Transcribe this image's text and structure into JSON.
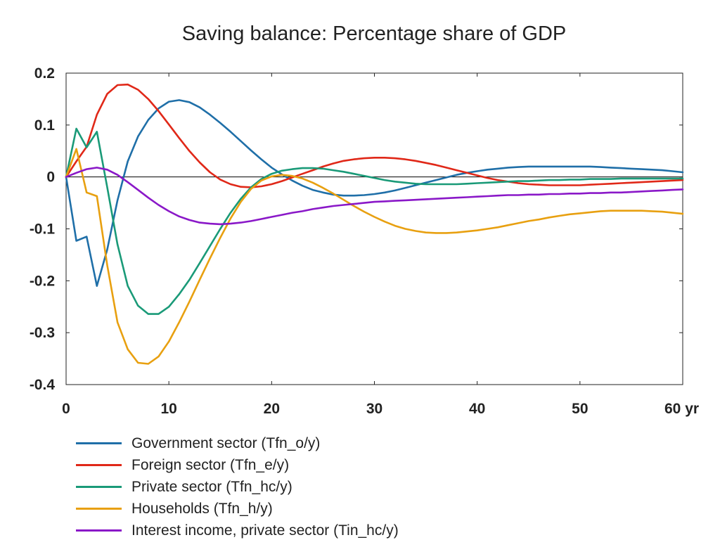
{
  "chart_data": {
    "type": "line",
    "title": "Saving balance: Percentage share of GDP",
    "xlabel": "",
    "ylabel": "",
    "x_unit_label": "yr",
    "xlim": [
      0,
      60
    ],
    "ylim": [
      -0.4,
      0.2
    ],
    "x_ticks": [
      0,
      10,
      20,
      30,
      40,
      50,
      60
    ],
    "x_tick_labels": [
      "0",
      "10",
      "20",
      "30",
      "40",
      "50",
      "60 yr"
    ],
    "y_ticks": [
      0.2,
      0.1,
      0,
      -0.1,
      -0.2,
      -0.3,
      -0.4
    ],
    "y_tick_labels": [
      "0.2",
      "0.1",
      "0",
      "-0.1",
      "-0.2",
      "-0.3",
      "-0.4"
    ],
    "zero_line": true,
    "grid": false,
    "legend_position": "bottom",
    "series": [
      {
        "name": "Government sector (Tfn_o/y)",
        "color": "#1f6fa8",
        "x": [
          0,
          1,
          2,
          3,
          4,
          5,
          6,
          7,
          8,
          9,
          10,
          11,
          12,
          13,
          14,
          15,
          16,
          17,
          18,
          19,
          20,
          21,
          22,
          23,
          24,
          25,
          26,
          27,
          28,
          29,
          30,
          31,
          32,
          33,
          34,
          35,
          36,
          37,
          38,
          39,
          40,
          41,
          42,
          43,
          44,
          45,
          46,
          47,
          48,
          49,
          50,
          51,
          52,
          53,
          54,
          55,
          56,
          57,
          58,
          59,
          60
        ],
        "y": [
          0,
          -0.123,
          -0.115,
          -0.21,
          -0.14,
          -0.045,
          0.03,
          0.078,
          0.11,
          0.132,
          0.145,
          0.148,
          0.144,
          0.134,
          0.12,
          0.104,
          0.087,
          0.069,
          0.051,
          0.034,
          0.018,
          0.005,
          -0.007,
          -0.017,
          -0.025,
          -0.03,
          -0.034,
          -0.036,
          -0.036,
          -0.035,
          -0.033,
          -0.03,
          -0.026,
          -0.021,
          -0.016,
          -0.011,
          -0.006,
          -0.001,
          0.004,
          0.008,
          0.011,
          0.014,
          0.016,
          0.018,
          0.019,
          0.02,
          0.02,
          0.02,
          0.02,
          0.02,
          0.02,
          0.02,
          0.019,
          0.018,
          0.017,
          0.016,
          0.015,
          0.014,
          0.013,
          0.011,
          0.009
        ]
      },
      {
        "name": "Foreign sector (Tfn_e/y)",
        "color": "#e02818",
        "x": [
          0,
          1,
          2,
          3,
          4,
          5,
          6,
          7,
          8,
          9,
          10,
          11,
          12,
          13,
          14,
          15,
          16,
          17,
          18,
          19,
          20,
          21,
          22,
          23,
          24,
          25,
          26,
          27,
          28,
          29,
          30,
          31,
          32,
          33,
          34,
          35,
          36,
          37,
          38,
          39,
          40,
          41,
          42,
          43,
          44,
          45,
          46,
          47,
          48,
          49,
          50,
          51,
          52,
          53,
          54,
          55,
          56,
          57,
          58,
          59,
          60
        ],
        "y": [
          0,
          0.03,
          0.058,
          0.12,
          0.16,
          0.177,
          0.178,
          0.168,
          0.15,
          0.127,
          0.101,
          0.075,
          0.05,
          0.028,
          0.009,
          -0.005,
          -0.014,
          -0.019,
          -0.02,
          -0.018,
          -0.014,
          -0.008,
          -0.001,
          0.006,
          0.013,
          0.02,
          0.026,
          0.031,
          0.034,
          0.036,
          0.037,
          0.037,
          0.036,
          0.034,
          0.031,
          0.027,
          0.023,
          0.018,
          0.013,
          0.008,
          0.003,
          -0.002,
          -0.006,
          -0.009,
          -0.012,
          -0.014,
          -0.015,
          -0.016,
          -0.016,
          -0.016,
          -0.016,
          -0.015,
          -0.014,
          -0.013,
          -0.012,
          -0.011,
          -0.01,
          -0.009,
          -0.008,
          -0.007,
          -0.006
        ]
      },
      {
        "name": "Private sector (Tfn_hc/y)",
        "color": "#1a9a78",
        "x": [
          0,
          1,
          2,
          3,
          4,
          5,
          6,
          7,
          8,
          9,
          10,
          11,
          12,
          13,
          14,
          15,
          16,
          17,
          18,
          19,
          20,
          21,
          22,
          23,
          24,
          25,
          26,
          27,
          28,
          29,
          30,
          31,
          32,
          33,
          34,
          35,
          36,
          37,
          38,
          39,
          40,
          41,
          42,
          43,
          44,
          45,
          46,
          47,
          48,
          49,
          50,
          51,
          52,
          53,
          54,
          55,
          56,
          57,
          58,
          59,
          60
        ],
        "y": [
          0,
          0.093,
          0.057,
          0.087,
          -0.02,
          -0.13,
          -0.21,
          -0.248,
          -0.264,
          -0.264,
          -0.25,
          -0.226,
          -0.198,
          -0.166,
          -0.133,
          -0.1,
          -0.069,
          -0.042,
          -0.02,
          -0.004,
          0.006,
          0.012,
          0.015,
          0.017,
          0.017,
          0.016,
          0.013,
          0.01,
          0.006,
          0.002,
          -0.002,
          -0.006,
          -0.009,
          -0.011,
          -0.013,
          -0.014,
          -0.014,
          -0.014,
          -0.014,
          -0.013,
          -0.012,
          -0.011,
          -0.01,
          -0.009,
          -0.008,
          -0.008,
          -0.007,
          -0.006,
          -0.006,
          -0.005,
          -0.005,
          -0.004,
          -0.004,
          -0.004,
          -0.003,
          -0.003,
          -0.003,
          -0.003,
          -0.003,
          -0.003,
          -0.003
        ]
      },
      {
        "name": "Households (Tfn_h/y)",
        "color": "#e8a010",
        "x": [
          0,
          1,
          2,
          3,
          4,
          5,
          6,
          7,
          8,
          9,
          10,
          11,
          12,
          13,
          14,
          15,
          16,
          17,
          18,
          19,
          20,
          21,
          22,
          23,
          24,
          25,
          26,
          27,
          28,
          29,
          30,
          31,
          32,
          33,
          34,
          35,
          36,
          37,
          38,
          39,
          40,
          41,
          42,
          43,
          44,
          45,
          46,
          47,
          48,
          49,
          50,
          51,
          52,
          53,
          54,
          55,
          56,
          57,
          58,
          59,
          60
        ],
        "y": [
          0,
          0.054,
          -0.03,
          -0.037,
          -0.17,
          -0.28,
          -0.332,
          -0.358,
          -0.36,
          -0.346,
          -0.317,
          -0.28,
          -0.24,
          -0.198,
          -0.157,
          -0.117,
          -0.08,
          -0.048,
          -0.023,
          -0.007,
          0.001,
          0.004,
          0.002,
          -0.003,
          -0.011,
          -0.021,
          -0.032,
          -0.044,
          -0.056,
          -0.067,
          -0.077,
          -0.086,
          -0.094,
          -0.1,
          -0.104,
          -0.107,
          -0.108,
          -0.108,
          -0.107,
          -0.105,
          -0.103,
          -0.1,
          -0.097,
          -0.093,
          -0.089,
          -0.085,
          -0.082,
          -0.078,
          -0.075,
          -0.072,
          -0.07,
          -0.068,
          -0.066,
          -0.065,
          -0.065,
          -0.065,
          -0.065,
          -0.066,
          -0.067,
          -0.069,
          -0.071
        ]
      },
      {
        "name": "Interest income, private sector (Tin_hc/y)",
        "color": "#8a18c8",
        "x": [
          0,
          1,
          2,
          3,
          4,
          5,
          6,
          7,
          8,
          9,
          10,
          11,
          12,
          13,
          14,
          15,
          16,
          17,
          18,
          19,
          20,
          21,
          22,
          23,
          24,
          25,
          26,
          27,
          28,
          29,
          30,
          31,
          32,
          33,
          34,
          35,
          36,
          37,
          38,
          39,
          40,
          41,
          42,
          43,
          44,
          45,
          46,
          47,
          48,
          49,
          50,
          51,
          52,
          53,
          54,
          55,
          56,
          57,
          58,
          59,
          60
        ],
        "y": [
          0,
          0.008,
          0.015,
          0.018,
          0.014,
          0.004,
          -0.01,
          -0.025,
          -0.04,
          -0.054,
          -0.066,
          -0.076,
          -0.083,
          -0.088,
          -0.09,
          -0.091,
          -0.09,
          -0.088,
          -0.085,
          -0.081,
          -0.077,
          -0.073,
          -0.069,
          -0.066,
          -0.062,
          -0.059,
          -0.056,
          -0.054,
          -0.052,
          -0.05,
          -0.048,
          -0.047,
          -0.046,
          -0.045,
          -0.044,
          -0.043,
          -0.042,
          -0.041,
          -0.04,
          -0.039,
          -0.038,
          -0.037,
          -0.036,
          -0.035,
          -0.035,
          -0.034,
          -0.034,
          -0.033,
          -0.033,
          -0.032,
          -0.032,
          -0.031,
          -0.031,
          -0.03,
          -0.03,
          -0.029,
          -0.028,
          -0.027,
          -0.026,
          -0.025,
          -0.024
        ]
      }
    ]
  }
}
